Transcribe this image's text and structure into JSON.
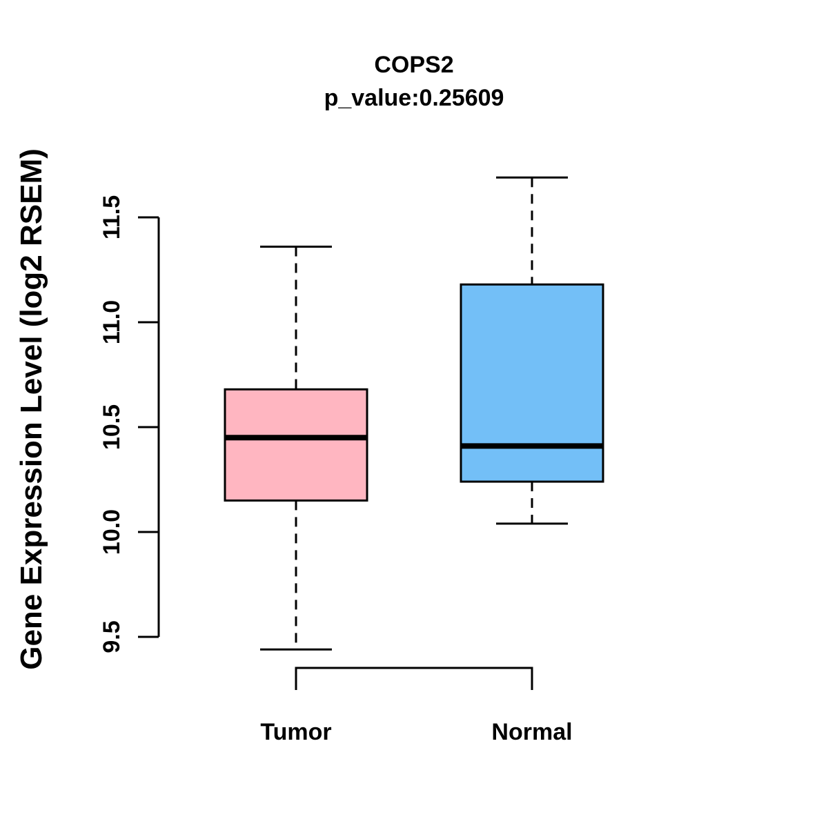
{
  "page": {
    "background_color": "#FFFFFF"
  },
  "chart_data": {
    "type": "boxplot",
    "title": "COPS2",
    "subtitle": "p_value:0.25609",
    "ylabel": "Gene Expression Level (log2 RSEM)",
    "xlabel": "",
    "ylim": [
      9.5,
      11.5
    ],
    "yticks": [
      9.5,
      10.0,
      10.5,
      11.0,
      11.5
    ],
    "ytick_labels": [
      "9.5",
      "10.0",
      "10.5",
      "11.0",
      "11.5"
    ],
    "grid": false,
    "legend": "none",
    "categories": [
      "Tumor",
      "Normal"
    ],
    "series": [
      {
        "name": "Tumor",
        "fill_color": "#FFB6C1",
        "border_color": "#000000",
        "stats": {
          "lower_whisker": 9.44,
          "q1": 10.15,
          "median": 10.45,
          "q3": 10.68,
          "upper_whisker": 11.36
        }
      },
      {
        "name": "Normal",
        "fill_color": "#73BFF7",
        "border_color": "#000000",
        "stats": {
          "lower_whisker": 10.04,
          "q1": 10.24,
          "median": 10.41,
          "q3": 11.18,
          "upper_whisker": 11.69
        }
      }
    ],
    "comparison_bracket": {
      "from": "Tumor",
      "to": "Normal"
    }
  }
}
